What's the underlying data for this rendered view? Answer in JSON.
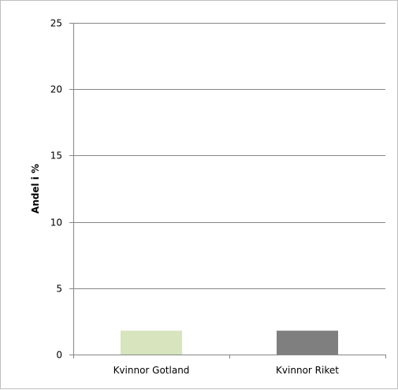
{
  "chart_data": {
    "type": "bar",
    "title": "",
    "xlabel": "",
    "ylabel": "Andel i %",
    "categories": [
      "Kvinnor Gotland",
      "Kvinnor Riket"
    ],
    "values": [
      1.8,
      1.8
    ],
    "ylim": [
      0,
      25
    ],
    "yticks": [
      0,
      5,
      10,
      15,
      20,
      25
    ],
    "grid": true,
    "legend": "none",
    "colors": [
      "#d7e4bd",
      "#7f7f7f"
    ]
  }
}
